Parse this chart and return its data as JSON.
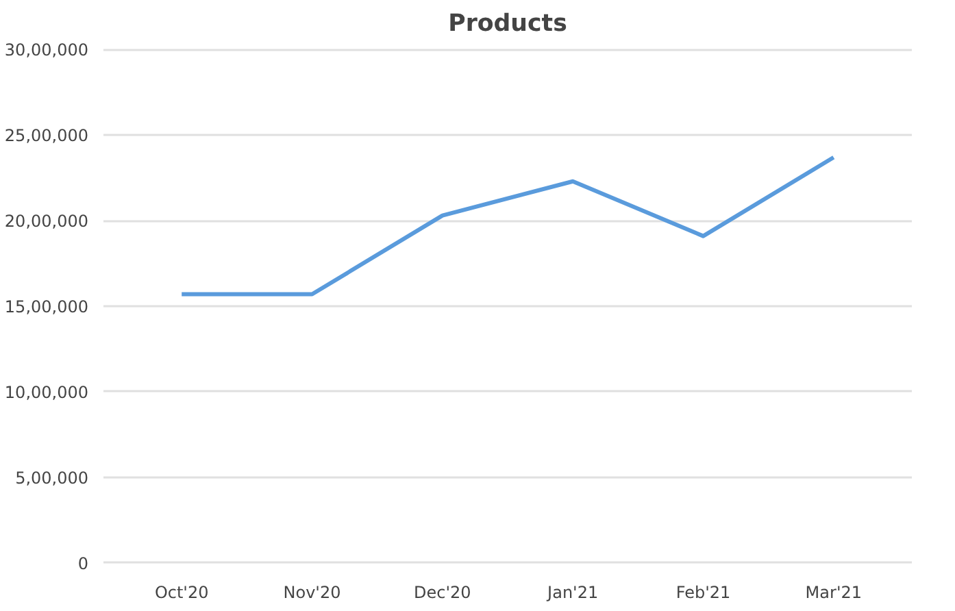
{
  "chart_data": {
    "type": "line",
    "title": "Products",
    "categories": [
      "Oct'20",
      "Nov'20",
      "Dec'20",
      "Jan'21",
      "Feb'21",
      "Mar'21"
    ],
    "series": [
      {
        "color": "#5a9bdc",
        "values": [
          1570000,
          1570000,
          2030000,
          2230000,
          1910000,
          2370000
        ]
      }
    ],
    "ylim": [
      0,
      3000000
    ],
    "yticks": [
      {
        "value": 0,
        "label": "0"
      },
      {
        "value": 500000,
        "label": "5,00,000"
      },
      {
        "value": 1000000,
        "label": "10,00,000"
      },
      {
        "value": 1500000,
        "label": "15,00,000"
      },
      {
        "value": 2000000,
        "label": "20,00,000"
      },
      {
        "value": 2500000,
        "label": "25,00,000"
      },
      {
        "value": 3000000,
        "label": "30,00,000"
      }
    ],
    "grid": "y",
    "marker": "none",
    "line_style": "solid"
  }
}
